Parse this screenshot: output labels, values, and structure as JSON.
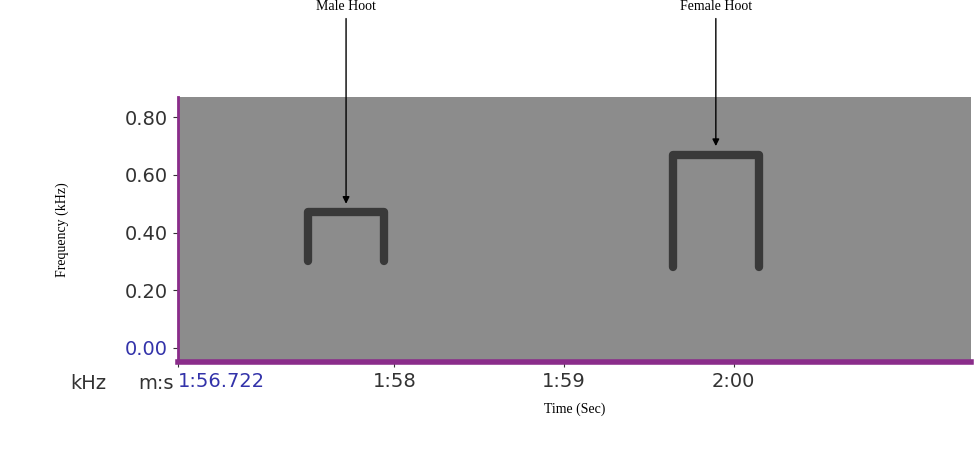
{
  "chart_data": {
    "type": "spectrogram",
    "x_label": "Time (Sec)",
    "y_label": "Frequency (kHz)",
    "x_unit_label": "m:s",
    "y_unit_label": "kHz",
    "xlim": [
      116.722,
      121.4
    ],
    "xticks": [
      {
        "value": 116.722,
        "label": "1:56.722"
      },
      {
        "value": 118,
        "label": "1:58"
      },
      {
        "value": 119,
        "label": "1:59"
      },
      {
        "value": 120,
        "label": "2:00"
      }
    ],
    "ylim": [
      -0.05,
      0.87
    ],
    "yticks": [
      {
        "value": 0.0,
        "label": "0.00"
      },
      {
        "value": 0.2,
        "label": "0.20"
      },
      {
        "value": 0.4,
        "label": "0.40"
      },
      {
        "value": 0.6,
        "label": "0.60"
      },
      {
        "value": 0.8,
        "label": "0.80"
      }
    ],
    "grid": false,
    "hoots": [
      {
        "name": "Male Hoot",
        "start": 117.49,
        "end": 117.94,
        "frequency": 0.47,
        "low": 0.3
      },
      {
        "name": "Female Hoot",
        "start": 119.64,
        "end": 120.15,
        "frequency": 0.67,
        "low": 0.28
      }
    ]
  }
}
